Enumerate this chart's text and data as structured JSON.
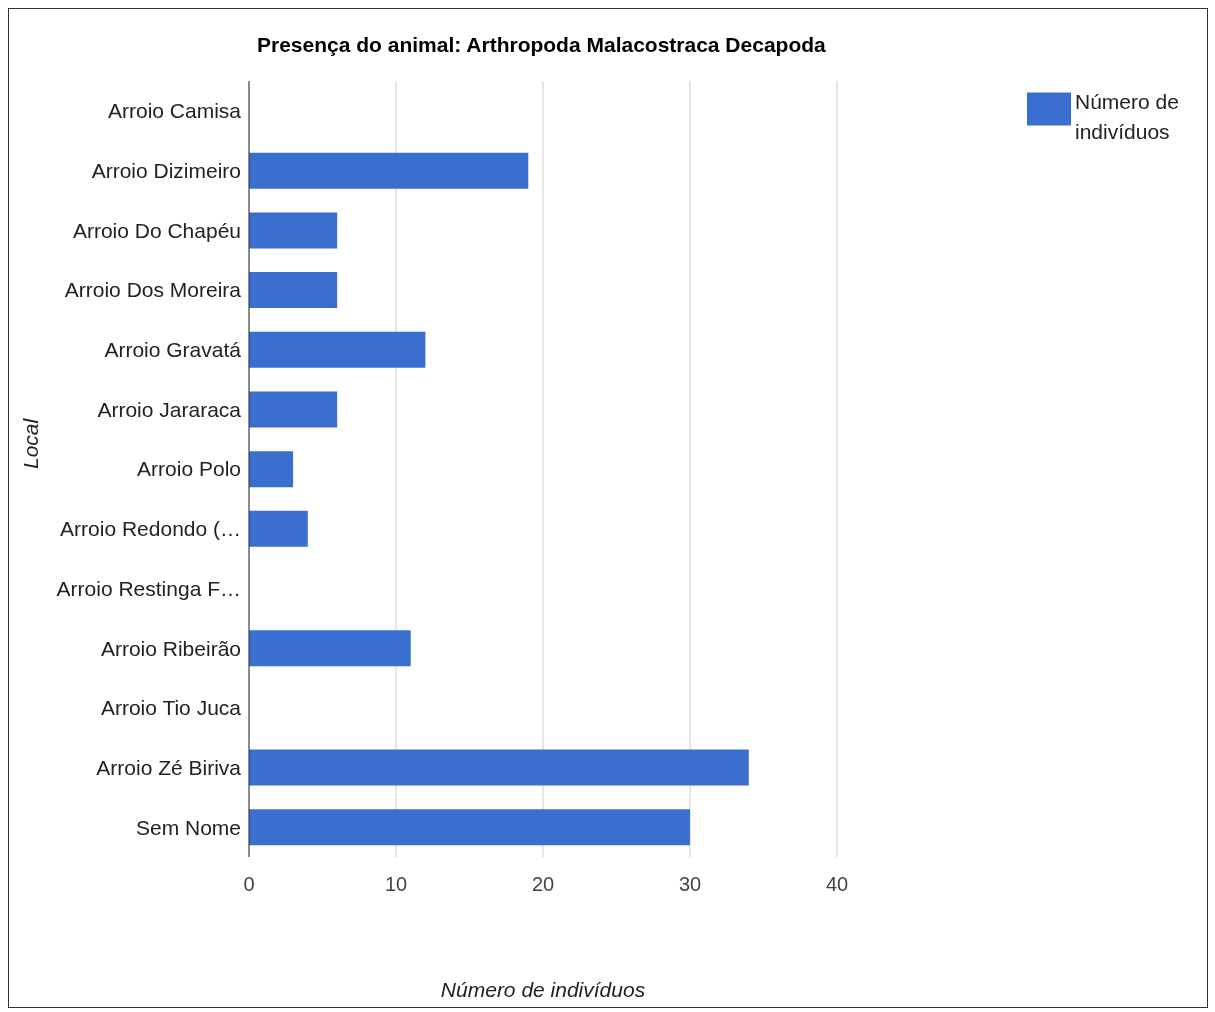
{
  "chart_data": {
    "type": "bar",
    "orientation": "horizontal",
    "title": "Presença do animal: Arthropoda Malacostraca Decapoda",
    "xlabel": "Número de indivíduos",
    "ylabel": "Local",
    "categories": [
      "Arroio Camisa",
      "Arroio Dizimeiro",
      "Arroio Do Chapéu",
      "Arroio Dos Moreira",
      "Arroio Gravatá",
      "Arroio Jararaca",
      "Arroio Polo",
      "Arroio Redondo (…",
      "Arroio Restinga F…",
      "Arroio Ribeirão",
      "Arroio Tio Juca",
      "Arroio Zé Biriva",
      "Sem Nome"
    ],
    "series": [
      {
        "name": "Número de indivíduos",
        "color": "#3a6ecf",
        "values": [
          0,
          19,
          6,
          6,
          12,
          6,
          3,
          4,
          0,
          11,
          0,
          34,
          30
        ]
      }
    ],
    "xlim": [
      0,
      40
    ],
    "xticks": [
      0,
      10,
      20,
      30,
      40
    ],
    "grid": "x",
    "legend": "top right"
  }
}
